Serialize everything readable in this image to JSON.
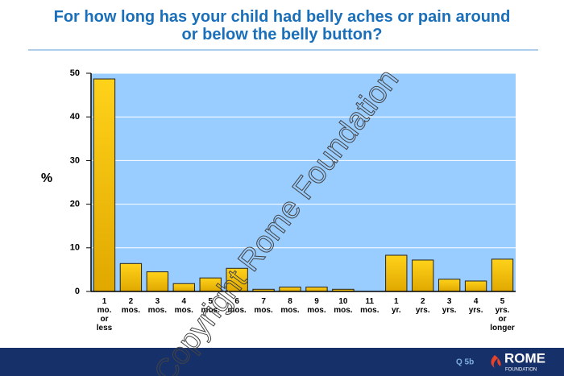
{
  "chart_data": {
    "type": "bar",
    "title": "For how long has your child had belly aches or pain around or below the belly button?",
    "y_label": "%",
    "categories": [
      "1 mo. or less",
      "2 mos.",
      "3 mos.",
      "4 mos.",
      "5 mos.",
      "6 mos.",
      "7 mos.",
      "8 mos.",
      "9 mos.",
      "10 mos.",
      "11 mos.",
      "1 yr.",
      "2 yrs.",
      "3 yrs.",
      "4 yrs.",
      "5 yrs. or longer"
    ],
    "values": [
      48.7,
      6.4,
      4.5,
      1.8,
      3.1,
      5.3,
      0.5,
      1.0,
      1.0,
      0.5,
      0,
      8.3,
      7.2,
      2.8,
      2.4,
      7.4
    ],
    "color": "#ffcc00",
    "ylim": [
      0,
      50
    ],
    "yticks": [
      0,
      10,
      20,
      30,
      40,
      50
    ],
    "grid": true
  },
  "watermark": "Copyright Rome Foundation",
  "footer": {
    "code": "Q 5b",
    "logo": "ROME",
    "logo_sub": "FOUNDATION"
  }
}
